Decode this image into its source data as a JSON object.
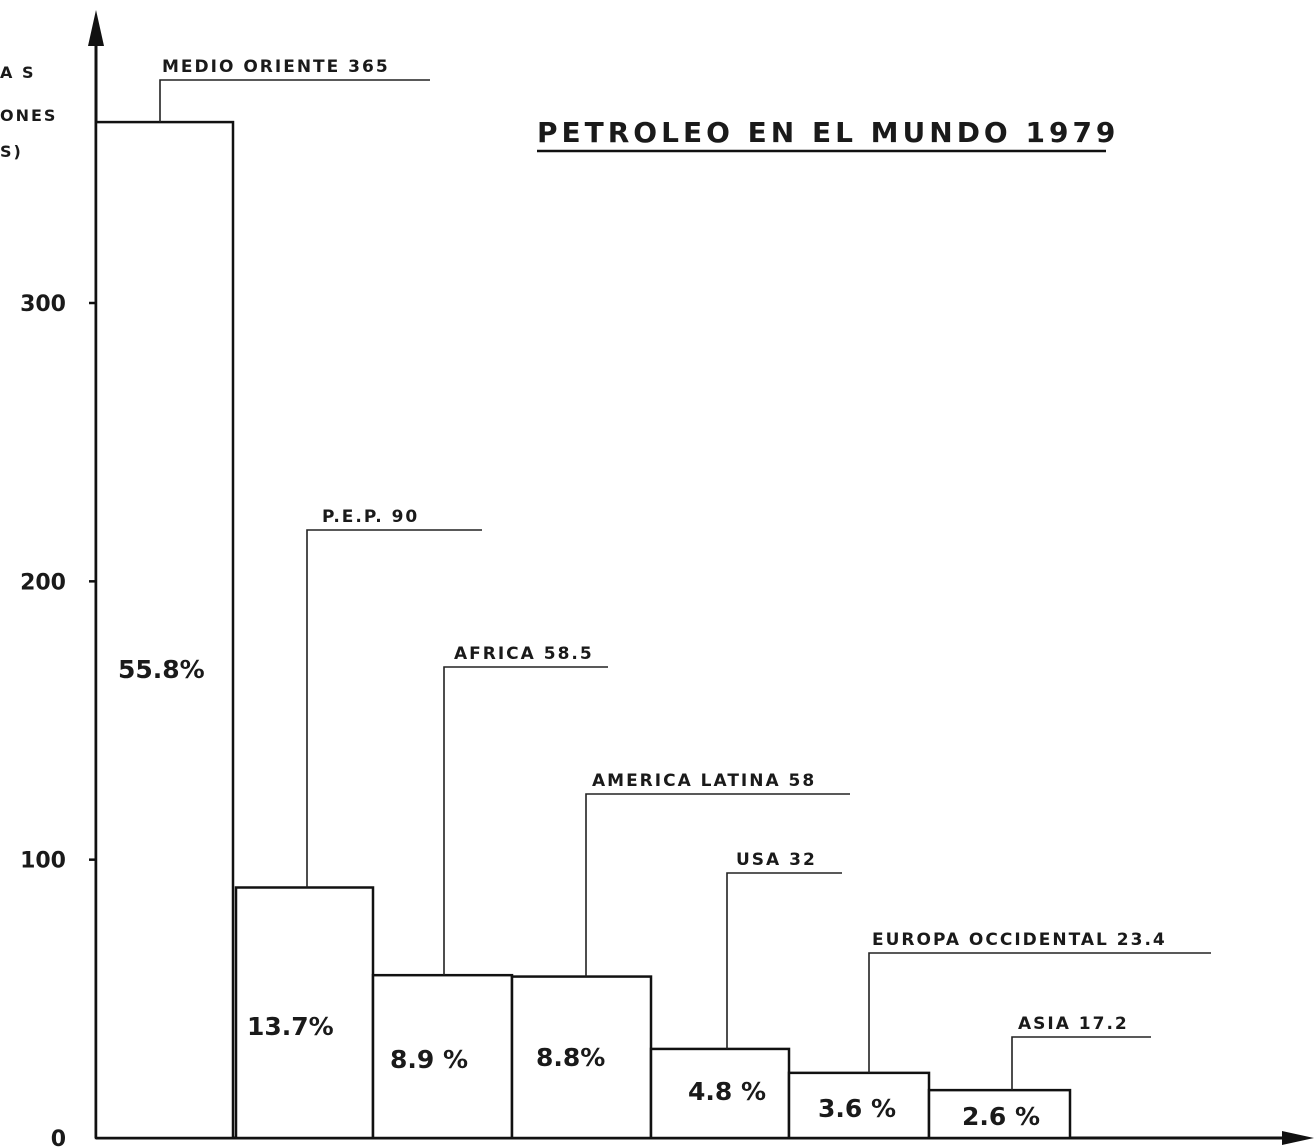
{
  "chart_data": {
    "type": "bar",
    "title": "PETROLEO EN EL MUNDO 1979",
    "ylabel_lines": [
      "A S",
      "ONES",
      "S)"
    ],
    "categories": [
      "MEDIO ORIENTE",
      "P.E.P.",
      "AFRICA",
      "AMERICA LATINA",
      "USA",
      "EUROPA OCCIDENTAL",
      "ASIA"
    ],
    "labels": [
      "MEDIO ORIENTE 365",
      "P.E.P. 90",
      "AFRICA 58.5",
      "AMERICA LATINA 58",
      "USA 32",
      "EUROPA OCCIDENTAL 23.4",
      "ASIA 17.2"
    ],
    "values": [
      365,
      90,
      58.5,
      58,
      32,
      23.4,
      17.2
    ],
    "percentages": [
      "55.8%",
      "13.7%",
      "8.9 %",
      "8.8%",
      "4.8 %",
      "3.6 %",
      "2.6 %"
    ],
    "yticks": [
      "0",
      "100",
      "200",
      "300"
    ],
    "ylim": [
      0,
      400
    ],
    "grid": false,
    "legend": "none"
  }
}
